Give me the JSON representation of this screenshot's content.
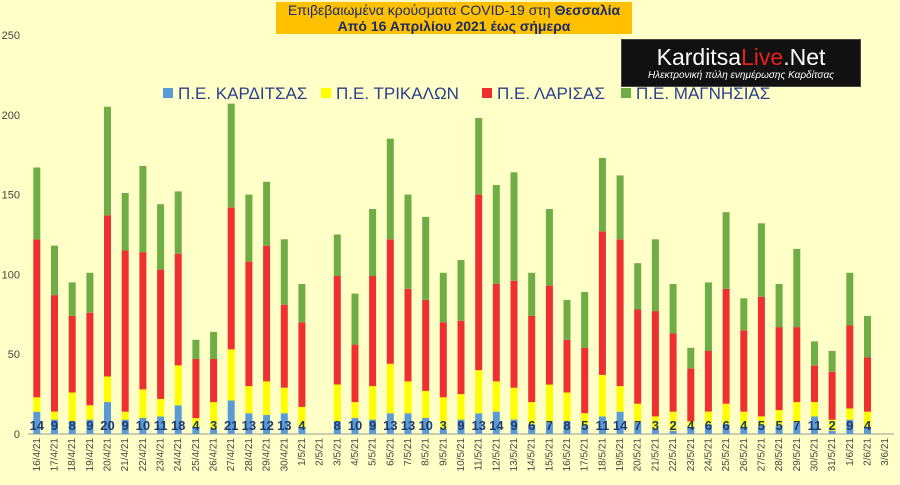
{
  "header": {
    "title_prefix": "Επιβεβαιωμένα κρούσματα COVID-19 στη ",
    "title_region": "Θεσσαλία",
    "subtitle": "Από 16 Απριλίου 2021 έως σήμερα"
  },
  "logo": {
    "brand_a": "Karditsa",
    "brand_b": "Live",
    "brand_c": ".Net",
    "tagline": "Ηλεκτρονική πύλη ενημέρωσης Καρδίτσας"
  },
  "colors": {
    "karditsa": "#5b9bd5",
    "trikala": "#ffff00",
    "larisa": "#ee3030",
    "magnisia": "#70ad47",
    "axis_text": "#444444",
    "label_text": "#1f3a70"
  },
  "chart_data": {
    "type": "bar",
    "stacked": true,
    "ylim": [
      0,
      250
    ],
    "yticks": [
      0,
      50,
      100,
      150,
      200,
      250
    ],
    "grid": false,
    "legend_position": "top",
    "categories": [
      "16/4/21",
      "17/4/21",
      "18/4/21",
      "19/4/21",
      "20/4/21",
      "21/4/21",
      "22/4/21",
      "23/4/21",
      "24/4/21",
      "25/4/21",
      "26/4/21",
      "27/4/21",
      "28/4/21",
      "29/4/21",
      "30/4/21",
      "1/5/21",
      "2/5/21",
      "3/5/21",
      "4/5/21",
      "5/5/21",
      "6/5/21",
      "7/5/21",
      "8/5/21",
      "9/5/21",
      "10/5/21",
      "11/5/21",
      "12/5/21",
      "13/5/21",
      "14/5/21",
      "15/5/21",
      "16/5/21",
      "17/5/21",
      "18/5/21",
      "19/5/21",
      "20/5/21",
      "21/5/21",
      "22/5/21",
      "23/5/21",
      "24/5/21",
      "25/5/21",
      "26/5/21",
      "27/5/21",
      "28/5/21",
      "29/5/21",
      "30/5/21",
      "31/5/21",
      "1/6/21",
      "2/6/21",
      "3/6/21"
    ],
    "series": [
      {
        "name": "Π.Ε. ΚΑΡΔΙΤΣΑΣ",
        "color_key": "karditsa",
        "values": [
          14,
          9,
          8,
          9,
          20,
          9,
          10,
          11,
          18,
          4,
          3,
          21,
          13,
          12,
          13,
          4,
          0,
          8,
          10,
          9,
          13,
          13,
          10,
          3,
          9,
          13,
          14,
          9,
          6,
          7,
          8,
          5,
          11,
          14,
          7,
          3,
          2,
          4,
          6,
          6,
          4,
          5,
          5,
          7,
          11,
          2,
          9,
          4,
          0
        ],
        "labels": [
          "14",
          "9",
          "8",
          "9",
          "20",
          "9",
          "10",
          "11",
          "18",
          "4",
          "3",
          "21",
          "13",
          "12",
          "13",
          "4",
          "",
          "8",
          "10",
          "9",
          "13",
          "13",
          "10",
          "3",
          "9",
          "13",
          "14",
          "9",
          "6",
          "7",
          "8",
          "5",
          "11",
          "14",
          "7",
          "3",
          "2",
          "4",
          "6",
          "6",
          "4",
          "5",
          "5",
          "7",
          "11",
          "2",
          "9",
          "4",
          ""
        ]
      },
      {
        "name": "Π.Ε. ΤΡΙΚΑΛΩΝ",
        "color_key": "trikala",
        "values": [
          9,
          5,
          18,
          9,
          16,
          5,
          18,
          11,
          25,
          6,
          17,
          32,
          17,
          21,
          16,
          13,
          0,
          23,
          10,
          21,
          31,
          20,
          17,
          20,
          16,
          27,
          19,
          20,
          14,
          24,
          18,
          8,
          26,
          16,
          12,
          8,
          12,
          4,
          8,
          13,
          10,
          6,
          10,
          13,
          9,
          7,
          7,
          10,
          0
        ]
      },
      {
        "name": "Π.Ε. ΛΑΡΙΣΑΣ",
        "color_key": "larisa",
        "values": [
          99,
          73,
          48,
          58,
          101,
          101,
          86,
          81,
          70,
          37,
          27,
          89,
          78,
          85,
          52,
          53,
          0,
          68,
          36,
          69,
          78,
          58,
          57,
          47,
          46,
          110,
          61,
          67,
          54,
          62,
          33,
          41,
          90,
          92,
          59,
          66,
          49,
          33,
          38,
          72,
          51,
          75,
          52,
          47,
          23,
          30,
          52,
          34,
          0
        ]
      },
      {
        "name": "Π.Ε. ΜΑΓΝΗΣΙΑΣ",
        "color_key": "magnisia",
        "values": [
          45,
          31,
          21,
          25,
          68,
          36,
          54,
          41,
          39,
          12,
          17,
          65,
          42,
          40,
          41,
          24,
          0,
          26,
          32,
          42,
          63,
          59,
          52,
          31,
          38,
          48,
          62,
          68,
          27,
          48,
          25,
          35,
          46,
          40,
          29,
          45,
          31,
          13,
          43,
          48,
          20,
          46,
          27,
          49,
          15,
          13,
          33,
          26,
          0
        ]
      }
    ]
  }
}
